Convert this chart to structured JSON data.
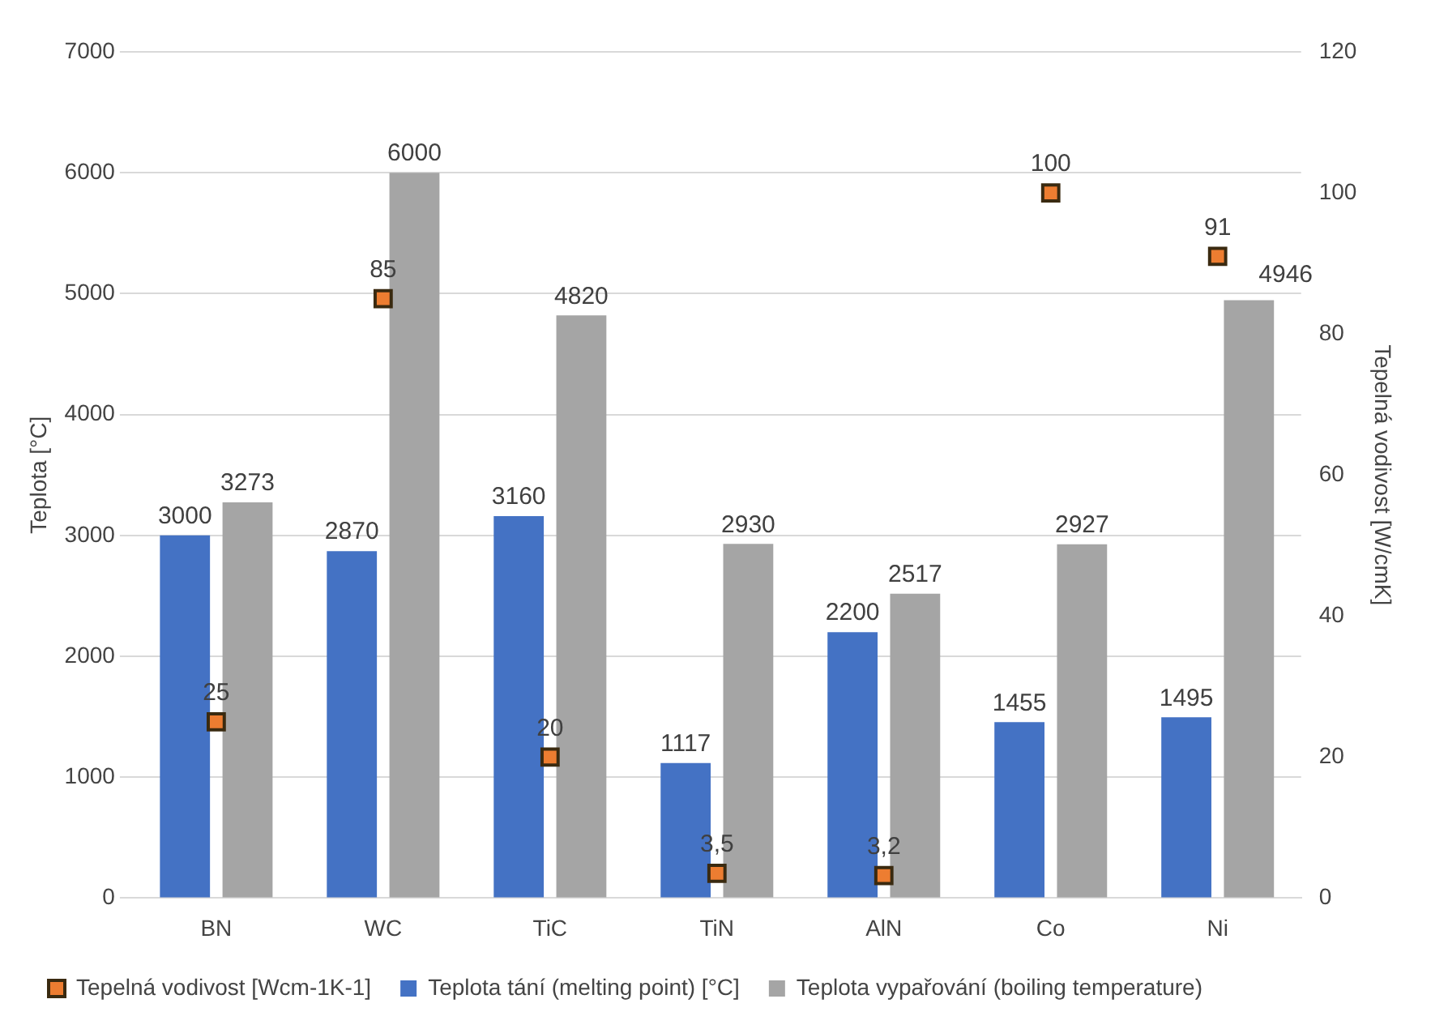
{
  "chart_data": {
    "type": "bar",
    "categories": [
      "BN",
      "WC",
      "TiC",
      "TiN",
      "AlN",
      "Co",
      "Ni"
    ],
    "series": [
      {
        "name": "Teplota tání (melting point) [°C]",
        "color": "#4472c4",
        "values": [
          3000,
          2870,
          3160,
          1117,
          2200,
          1455,
          1495
        ],
        "value_labels": [
          "3000",
          "2870",
          "3160",
          "1117",
          "2200",
          "1455",
          "1495"
        ]
      },
      {
        "name": "Teplota vypařování (boiling temperature)",
        "color": "#a5a5a5",
        "values": [
          3273,
          6000,
          4820,
          2930,
          2517,
          2927,
          4946
        ],
        "value_labels": [
          "3273",
          "6000",
          "4820",
          "2930",
          "2517",
          "2927",
          "4946"
        ]
      },
      {
        "name": "Tepelná vodivost [Wcm-1K-1]",
        "type": "scatter",
        "axis": "y2",
        "marker": "square",
        "color": "#ed7d31",
        "values": [
          25,
          85,
          20,
          3.5,
          3.2,
          100,
          91
        ],
        "value_labels": [
          "25",
          "85",
          "20",
          "3,5",
          "3,2",
          "100",
          "91"
        ]
      }
    ],
    "ylabel": "Teplota [°C]",
    "y2label": "Tepelná vodivost [W/cmK]",
    "ylim": [
      0,
      7000
    ],
    "yticks": [
      0,
      1000,
      2000,
      3000,
      4000,
      5000,
      6000,
      7000
    ],
    "y2lim": [
      0,
      120
    ],
    "y2ticks": [
      0,
      20,
      40,
      60,
      80,
      100,
      120
    ],
    "grid": "y",
    "legend": "bottom"
  }
}
